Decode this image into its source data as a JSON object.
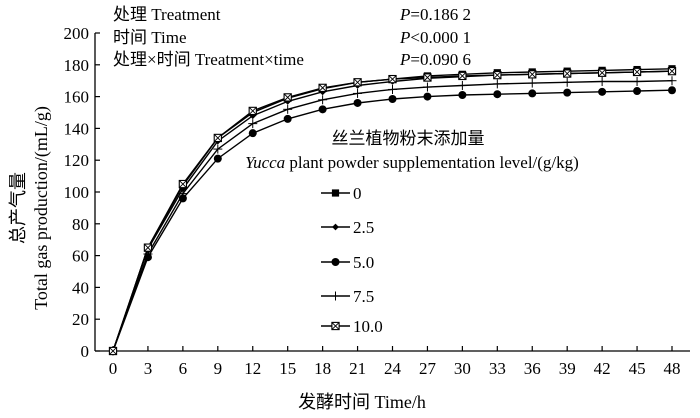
{
  "chart_data": {
    "type": "line",
    "title": "",
    "xlabel": "发酵时间 Time/h",
    "ylabel_cn": "总产气量",
    "ylabel_en": "Total gas production/(mL/g)",
    "x": [
      0,
      3,
      6,
      9,
      12,
      15,
      18,
      21,
      24,
      27,
      30,
      33,
      36,
      39,
      42,
      45,
      48
    ],
    "xlim": [
      0,
      48
    ],
    "ylim": [
      0,
      200
    ],
    "yticks": [
      0,
      20,
      40,
      60,
      80,
      100,
      120,
      140,
      160,
      180,
      200
    ],
    "xticks": [
      0,
      3,
      6,
      9,
      12,
      15,
      18,
      21,
      24,
      27,
      30,
      33,
      36,
      39,
      42,
      45,
      48
    ],
    "grid": false,
    "legend_title_cn": "丝兰植物粉末添加量",
    "legend_title_en_italic": "Yucca",
    "legend_title_en_rest": " plant powder supplementation level/(g/kg)",
    "legend_placement": "center",
    "series": [
      {
        "name": "0",
        "marker": "square",
        "values": [
          0,
          65,
          104,
          134,
          150,
          159,
          165,
          169,
          171,
          173,
          174,
          175,
          175.5,
          176,
          176.5,
          177,
          177.5
        ]
      },
      {
        "name": "2.5",
        "marker": "diamond",
        "values": [
          0,
          64,
          102,
          132,
          148,
          157,
          163,
          167,
          169.5,
          171.5,
          172.5,
          173.5,
          174,
          174.5,
          175,
          175.5,
          176
        ]
      },
      {
        "name": "5.0",
        "marker": "circle",
        "values": [
          0,
          59,
          96,
          121,
          137,
          146,
          152,
          156,
          158.5,
          160,
          161,
          161.5,
          162,
          162.5,
          163,
          163.5,
          164
        ]
      },
      {
        "name": "7.5",
        "marker": "plus",
        "values": [
          0,
          61,
          99,
          127,
          143,
          152,
          158,
          162,
          164.5,
          166,
          167,
          168,
          168.5,
          169,
          169.5,
          169.5,
          170
        ]
      },
      {
        "name": "10.0",
        "marker": "boxx",
        "values": [
          0,
          65,
          105,
          134,
          151,
          159.5,
          165.5,
          169,
          171,
          172,
          173,
          173.5,
          174,
          174.5,
          175,
          175.5,
          176
        ]
      }
    ],
    "annotations": [
      {
        "label": "处理  Treatment",
        "p_prefix": "P",
        "p_value": "=0.186 2"
      },
      {
        "label": "时间  Time",
        "p_prefix": "P",
        "p_value": "<0.000 1"
      },
      {
        "label": "处理×时间  Treatment×time",
        "p_prefix": "P",
        "p_value": "=0.090 6"
      }
    ]
  }
}
